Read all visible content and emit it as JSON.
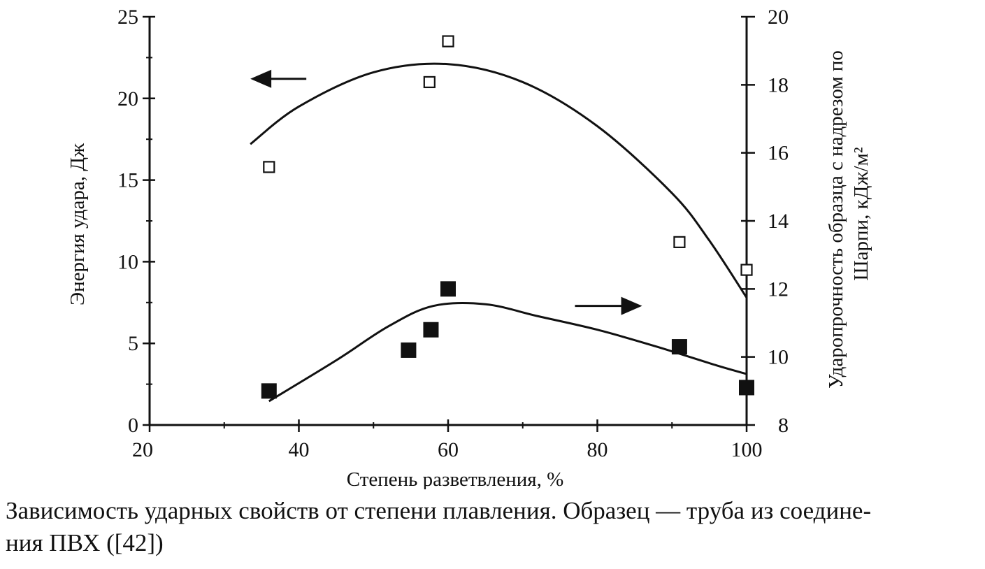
{
  "caption": {
    "line1": "Зависимость ударных свойств от степени плавления. Образец — труба из соедине-",
    "line2": "ния ПВХ ([42])"
  },
  "chart_data": {
    "type": "scatter",
    "xlabel": "Степень разветвления, %",
    "ylabel": "Энергия удара, Дж",
    "y2label_line1": "Ударопрочность образца с надрезом по",
    "y2label_line2": "Шарпи, кДж/м²",
    "xlim": [
      20,
      100
    ],
    "ylim": [
      0,
      25
    ],
    "y2lim": [
      8,
      20
    ],
    "x_ticks": [
      "20",
      "40",
      "60",
      "80",
      "100"
    ],
    "y_ticks": [
      "0",
      "5",
      "10",
      "15",
      "20",
      "25"
    ],
    "y2_ticks": [
      "8",
      "10",
      "12",
      "14",
      "16",
      "18",
      "20"
    ],
    "series": [
      {
        "axis": "left",
        "marker": "open-square",
        "points": [
          [
            36,
            15.8
          ],
          [
            57.5,
            21.0
          ],
          [
            60,
            23.5
          ],
          [
            91,
            11.2
          ],
          [
            100,
            9.5
          ]
        ],
        "trend": [
          [
            33.5,
            17.2
          ],
          [
            40,
            19.5
          ],
          [
            50,
            21.6
          ],
          [
            60,
            22.1
          ],
          [
            70,
            21.0
          ],
          [
            80,
            18.3
          ],
          [
            90,
            14.2
          ],
          [
            95,
            11.3
          ],
          [
            100,
            7.8
          ]
        ]
      },
      {
        "axis": "right",
        "marker": "filled-square",
        "points": [
          [
            36,
            9.0
          ],
          [
            54.7,
            10.2
          ],
          [
            57.7,
            10.8
          ],
          [
            60,
            12.0
          ],
          [
            91,
            10.3
          ],
          [
            100,
            9.1
          ]
        ],
        "trend": [
          [
            36,
            8.7
          ],
          [
            45,
            9.9
          ],
          [
            52,
            10.9
          ],
          [
            58,
            11.5
          ],
          [
            65,
            11.55
          ],
          [
            72,
            11.2
          ],
          [
            80,
            10.8
          ],
          [
            88,
            10.3
          ],
          [
            96,
            9.75
          ],
          [
            100,
            9.5
          ]
        ]
      }
    ],
    "annotations": [
      {
        "type": "arrow",
        "direction": "left",
        "from": [
          41,
          21.2
        ],
        "to": [
          33.5,
          21.2
        ],
        "axis": "left"
      },
      {
        "type": "arrow",
        "direction": "right",
        "from": [
          77,
          11.5
        ],
        "to": [
          86,
          11.5
        ],
        "axis": "right"
      }
    ]
  }
}
